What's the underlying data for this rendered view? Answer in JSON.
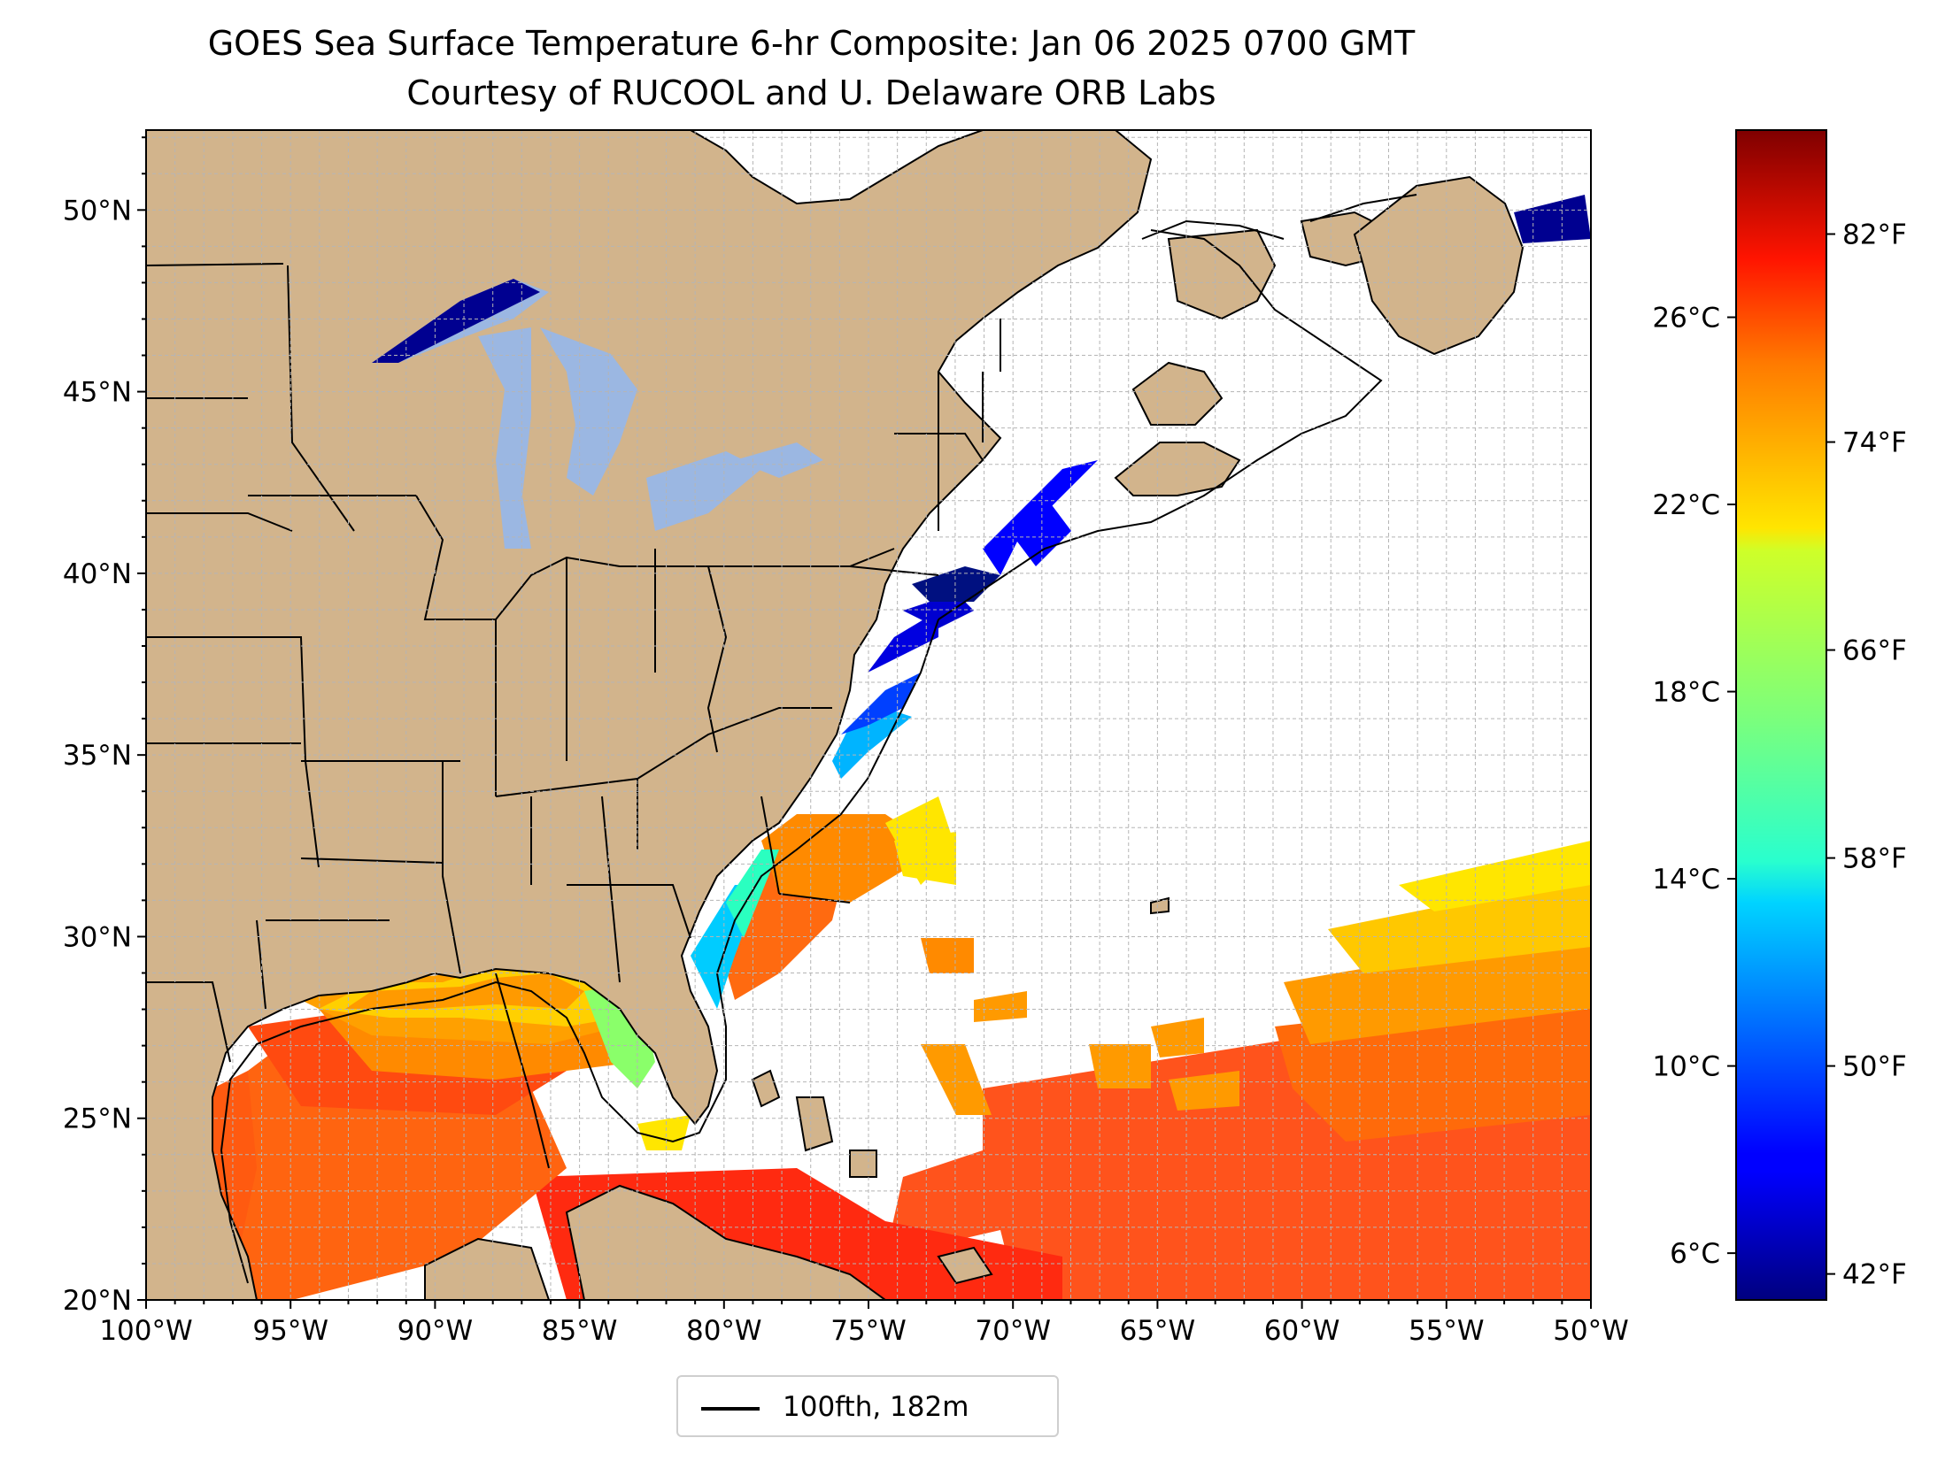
{
  "title": {
    "line1": "GOES Sea Surface Temperature 6-hr Composite: Jan 06 2025 0700 GMT",
    "line2": "Courtesy of RUCOOL and U. Delaware ORB Labs"
  },
  "map": {
    "projection": "PlateCarree",
    "lon_range": [
      -100,
      -50
    ],
    "lat_range": [
      20,
      52.2
    ],
    "lon_ticks": [
      {
        "value": -100,
        "label": "100°W"
      },
      {
        "value": -95,
        "label": "95°W"
      },
      {
        "value": -90,
        "label": "90°W"
      },
      {
        "value": -85,
        "label": "85°W"
      },
      {
        "value": -80,
        "label": "80°W"
      },
      {
        "value": -75,
        "label": "75°W"
      },
      {
        "value": -70,
        "label": "70°W"
      },
      {
        "value": -65,
        "label": "65°W"
      },
      {
        "value": -60,
        "label": "60°W"
      },
      {
        "value": -55,
        "label": "55°W"
      },
      {
        "value": -50,
        "label": "50°W"
      }
    ],
    "lat_ticks": [
      {
        "value": 20,
        "label": "20°N"
      },
      {
        "value": 25,
        "label": "25°N"
      },
      {
        "value": 30,
        "label": "30°N"
      },
      {
        "value": 35,
        "label": "35°N"
      },
      {
        "value": 40,
        "label": "40°N"
      },
      {
        "value": 45,
        "label": "45°N"
      },
      {
        "value": 50,
        "label": "50°N"
      }
    ],
    "grid": true,
    "colors": {
      "land": "#d2b48c",
      "lakes": "#9bb7e2",
      "ocean_nodata": "#ffffff",
      "lines": "#000000"
    }
  },
  "colorbar": {
    "colormap": "jet",
    "range_celsius": [
      5.0,
      30.0
    ],
    "celsius_ticks": [
      {
        "value": 6,
        "label": "6°C"
      },
      {
        "value": 10,
        "label": "10°C"
      },
      {
        "value": 14,
        "label": "14°C"
      },
      {
        "value": 18,
        "label": "18°C"
      },
      {
        "value": 22,
        "label": "22°C"
      },
      {
        "value": 26,
        "label": "26°C"
      }
    ],
    "fahrenheit_ticks": [
      {
        "value": 42,
        "label": "42°F"
      },
      {
        "value": 50,
        "label": "50°F"
      },
      {
        "value": 58,
        "label": "58°F"
      },
      {
        "value": 66,
        "label": "66°F"
      },
      {
        "value": 74,
        "label": "74°F"
      },
      {
        "value": 82,
        "label": "82°F"
      }
    ]
  },
  "legend": {
    "label": "100fth, 182m",
    "line_color": "#000000"
  }
}
